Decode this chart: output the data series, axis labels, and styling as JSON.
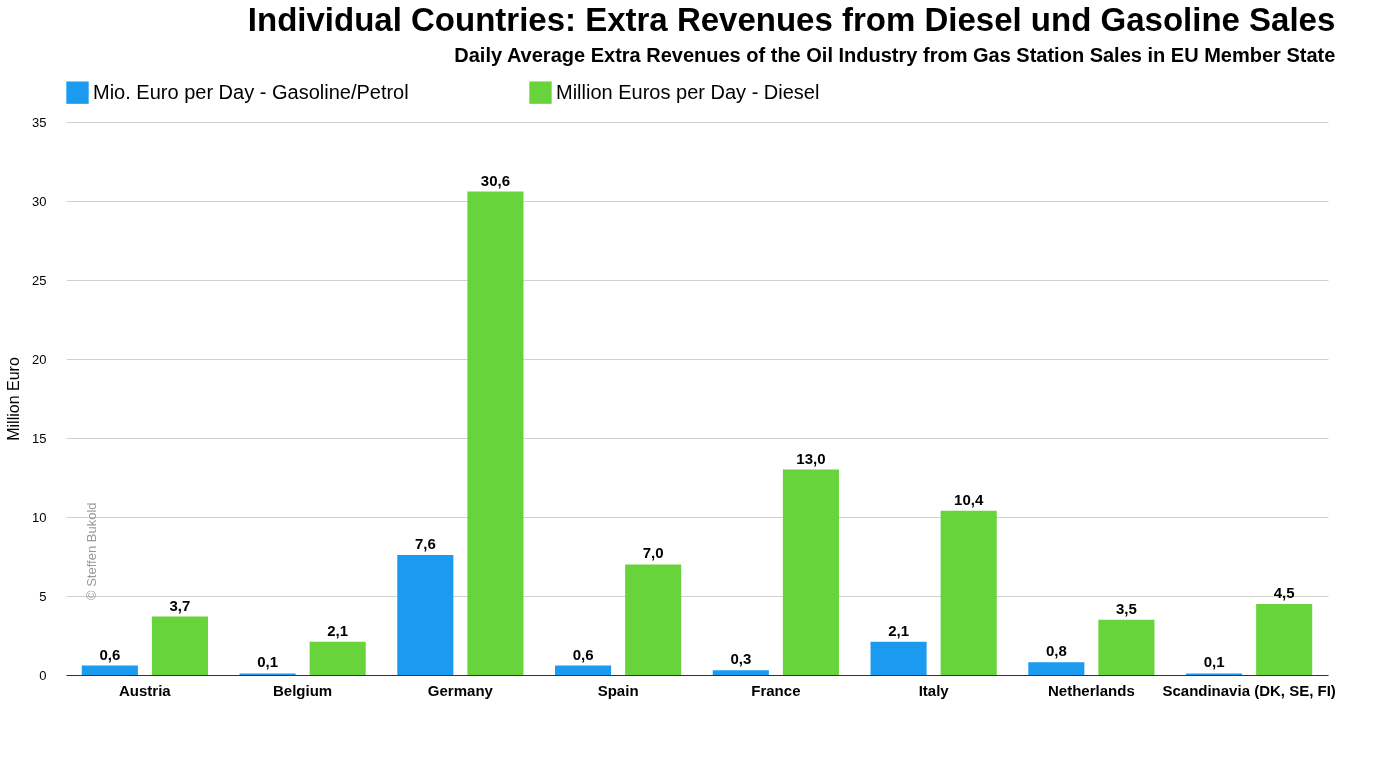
{
  "chart_data": {
    "type": "bar",
    "title": "Individual Countries: Extra Revenues from Diesel und Gasoline Sales",
    "subtitle": "Daily Average Extra Revenues of the Oil Industry from Gas Station Sales in EU Member State",
    "ylabel": "Million Euro",
    "categories": [
      "Austria",
      "Belgium",
      "Germany",
      "Spain",
      "France",
      "Italy",
      "Netherlands",
      "Scandinavia (DK, SE, FI)"
    ],
    "series": [
      {
        "name": "Mio. Euro per Day - Gasoline/Petrol",
        "color": "#1a9bf0",
        "values": [
          0.6,
          0.1,
          7.6,
          0.6,
          0.3,
          2.1,
          0.8,
          0.1
        ],
        "value_labels": [
          "0,6",
          "0,1",
          "7,6",
          "0,6",
          "0,3",
          "2,1",
          "0,8",
          "0,1"
        ]
      },
      {
        "name": "Million Euros per Day - Diesel",
        "color": "#66d43a",
        "values": [
          3.7,
          2.1,
          30.6,
          7.0,
          13.0,
          10.4,
          3.5,
          4.5
        ],
        "value_labels": [
          "3,7",
          "2,1",
          "30,6",
          "7,0",
          "13,0",
          "10,4",
          "3,5",
          "4,5"
        ]
      }
    ],
    "ylim": [
      0,
      35
    ],
    "yticks": [
      0,
      5,
      10,
      15,
      20,
      25,
      30,
      35
    ],
    "grid": "y",
    "legend": "top",
    "annotations": [
      "© Steffen Bukold"
    ]
  }
}
